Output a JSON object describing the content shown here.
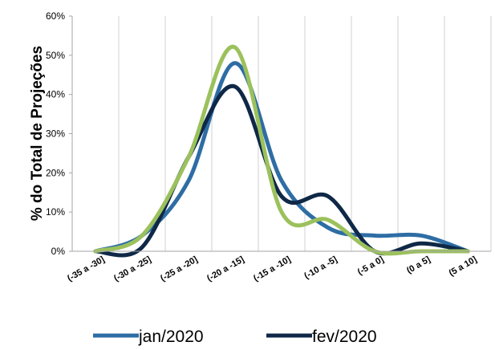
{
  "chart_data": {
    "type": "line",
    "title": "",
    "xlabel": "",
    "ylabel": "% do Total de Projeções",
    "ylim": [
      0,
      60
    ],
    "ytick_labels": [
      "0%",
      "10%",
      "20%",
      "30%",
      "40%",
      "50%",
      "60%"
    ],
    "categories": [
      "(-35 a -30]",
      "(-30 a -25]",
      "(-25 a -20]",
      "(-20 a -15]",
      "(-15 a -10]",
      "(-10 a -5]",
      "(-5 a 0]",
      "(0 a 5]",
      "(5 a 10]"
    ],
    "grid": "vertical",
    "legend_position": "bottom",
    "series": [
      {
        "name": "jan/2020",
        "color": "#2E6DA4",
        "values": [
          0,
          4,
          18,
          48,
          18,
          6,
          4,
          4,
          0
        ]
      },
      {
        "name": "fev/2020",
        "color": "#0F2847",
        "values": [
          0,
          1,
          24,
          42,
          14,
          14,
          0,
          2,
          0
        ]
      },
      {
        "name": "",
        "color": "#9BC15C",
        "values": [
          0,
          4,
          24,
          52,
          10,
          8,
          0,
          0,
          0
        ]
      }
    ]
  }
}
